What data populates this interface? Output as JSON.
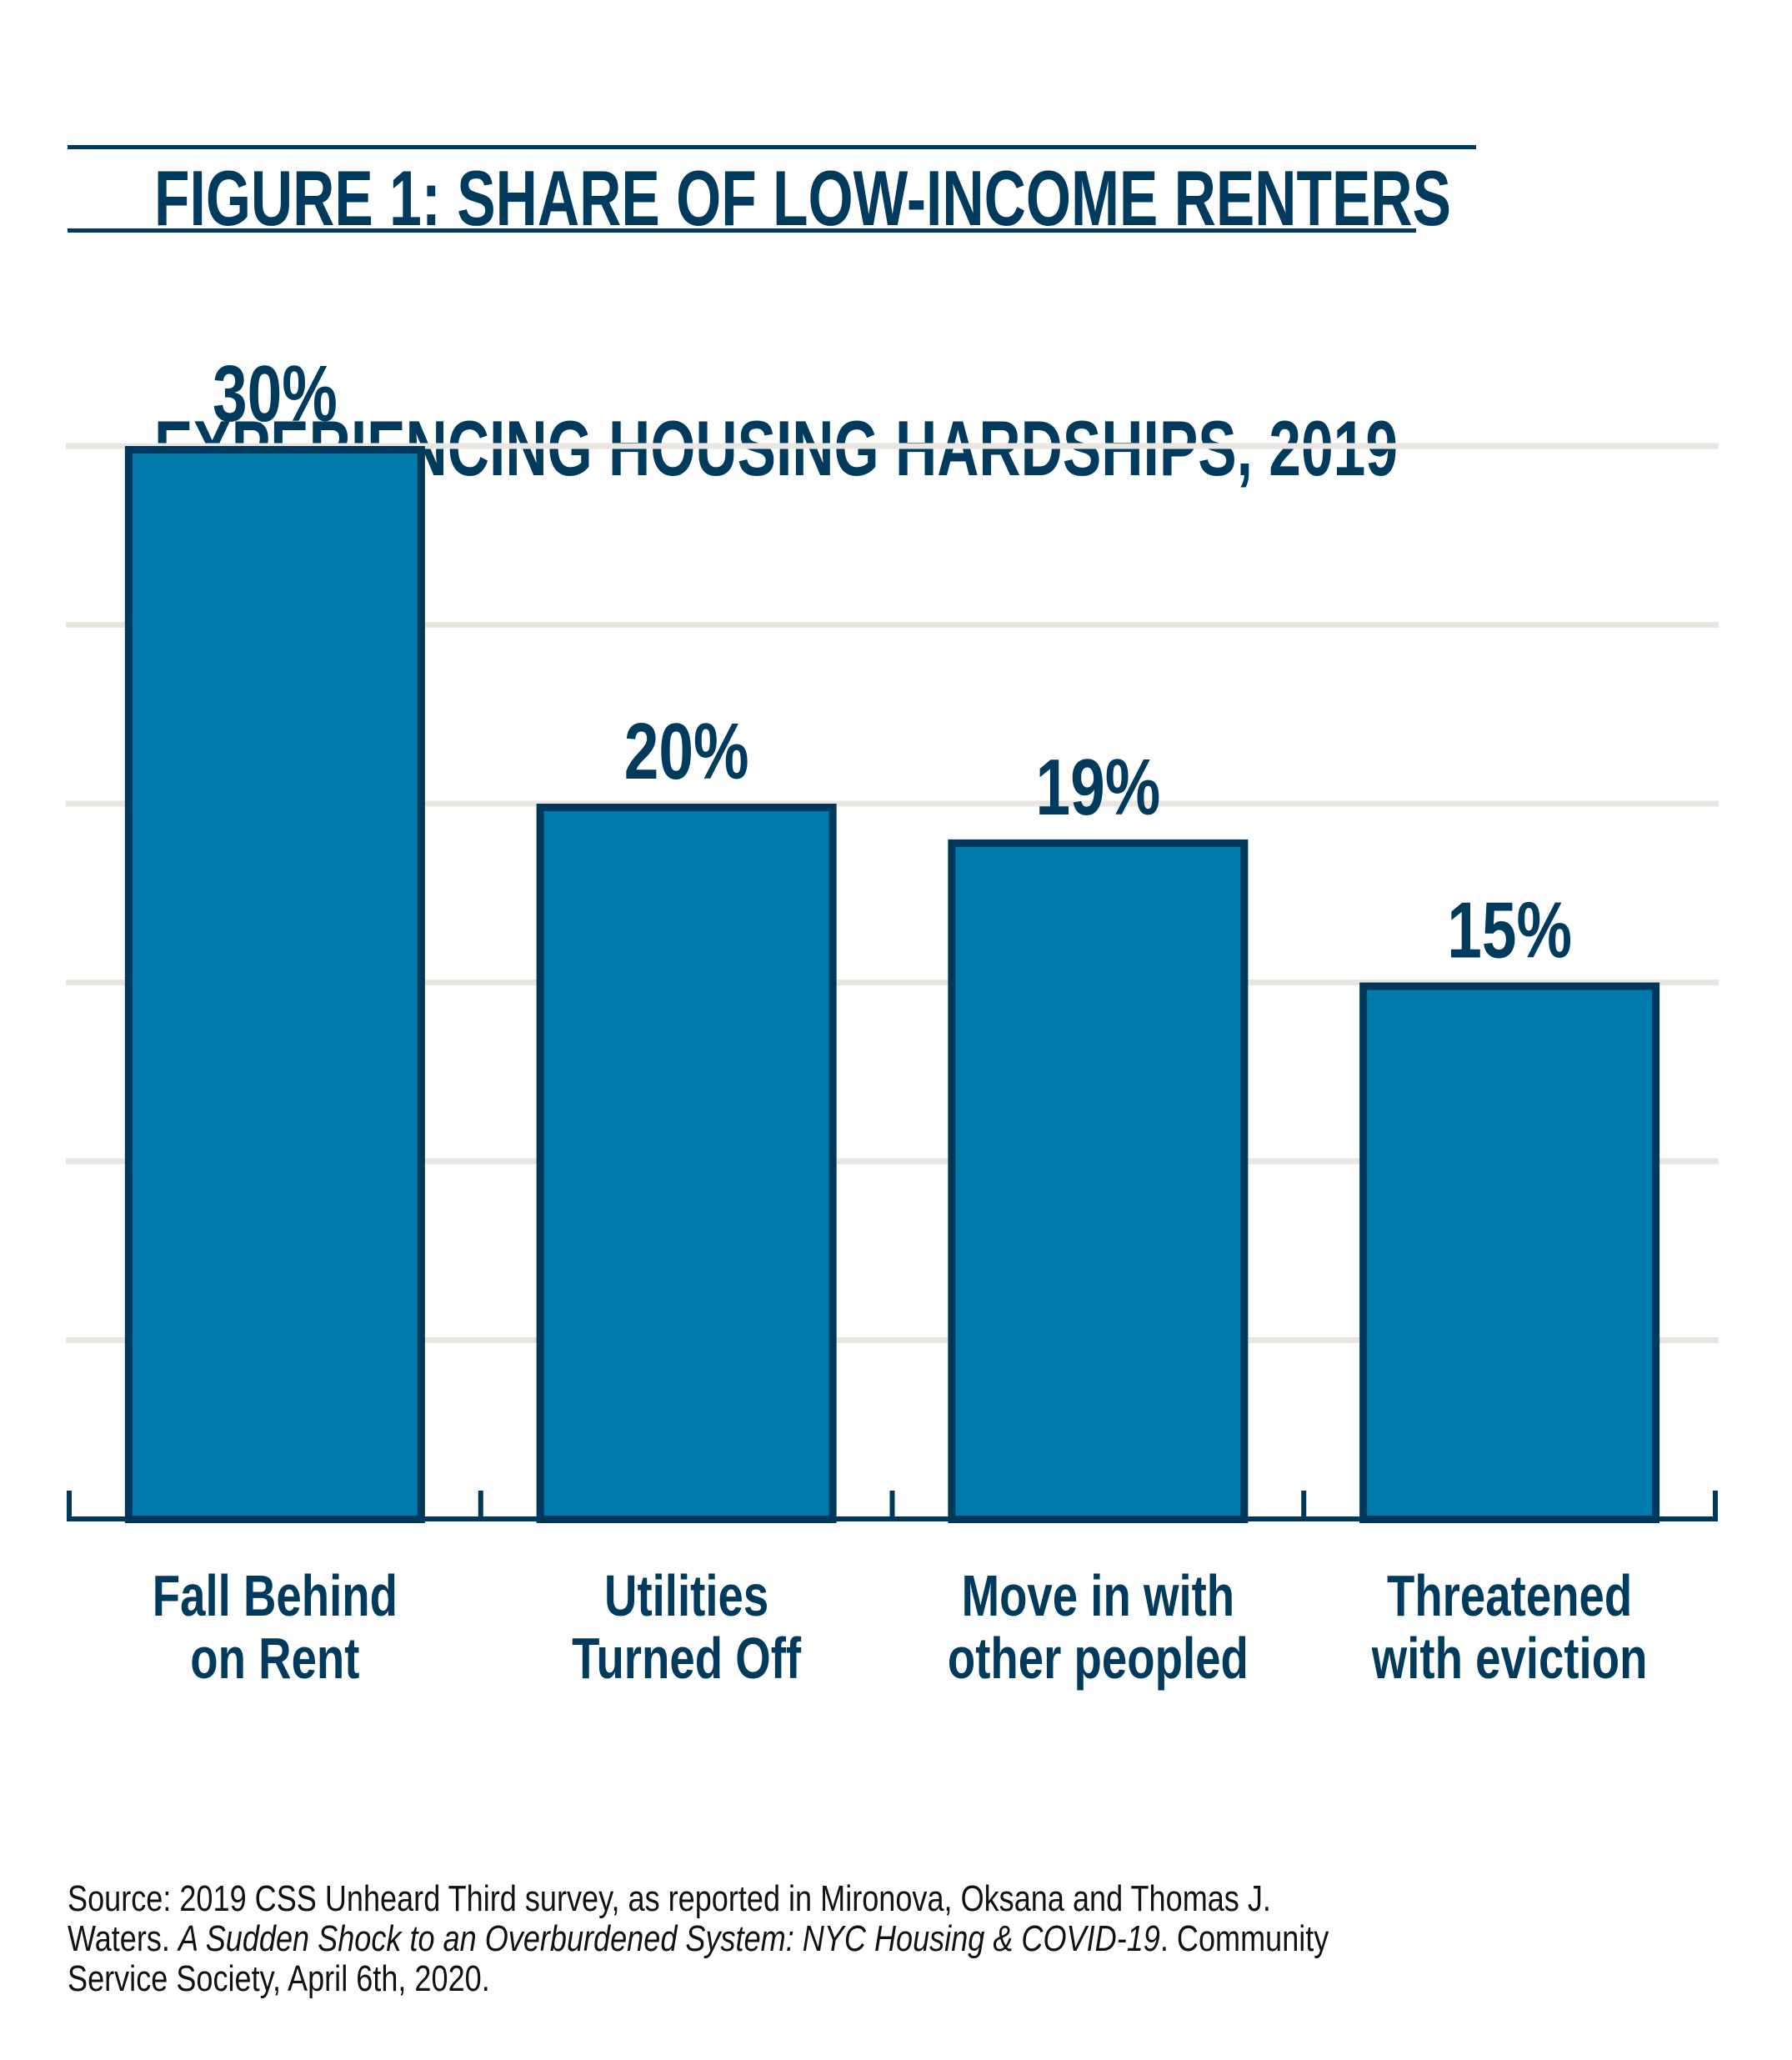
{
  "title": {
    "lines": [
      "FIGURE 1: SHARE OF LOW-INCOME RENTERS ",
      "EXPERIENCING HOUSING HARDSHIPS, 2019"
    ]
  },
  "colors": {
    "title": "#003a5d",
    "bar_fill": "#007aaa",
    "bar_border": "#00385c",
    "gridline": "#e9e5e1",
    "axis": "#00385c",
    "label": "#003a5d",
    "source_text": "#111111"
  },
  "chart_data": {
    "type": "bar",
    "title": "FIGURE 1: SHARE OF LOW-INCOME RENTERS EXPERIENCING HOUSING HARDSHIPS, 2019",
    "categories": [
      [
        "Fall Behind",
        "on Rent"
      ],
      [
        "Utilities",
        "Turned Off"
      ],
      [
        "Move in with",
        "other peopled"
      ],
      [
        "Threatened",
        "with eviction"
      ]
    ],
    "values": [
      30,
      20,
      19,
      15
    ],
    "value_labels": [
      "30%",
      "20%",
      "19%",
      "15%"
    ],
    "xlabel": "",
    "ylabel": "",
    "ylim": [
      0,
      30
    ],
    "gridline_step": 5,
    "grid": true,
    "y_tick_labels_shown": false,
    "legend": "none"
  },
  "source": {
    "line1": "Source: 2019 CSS Unheard Third survey, as reported in Mironova, Oksana and Thomas J.",
    "line2_prefix": "Waters. ",
    "line2_italic": "A Sudden Shock to an Overburdened System: NYC Housing & COVID-19",
    "line2_suffix": ". Community",
    "line3": "Service Society, April 6th, 2020."
  }
}
